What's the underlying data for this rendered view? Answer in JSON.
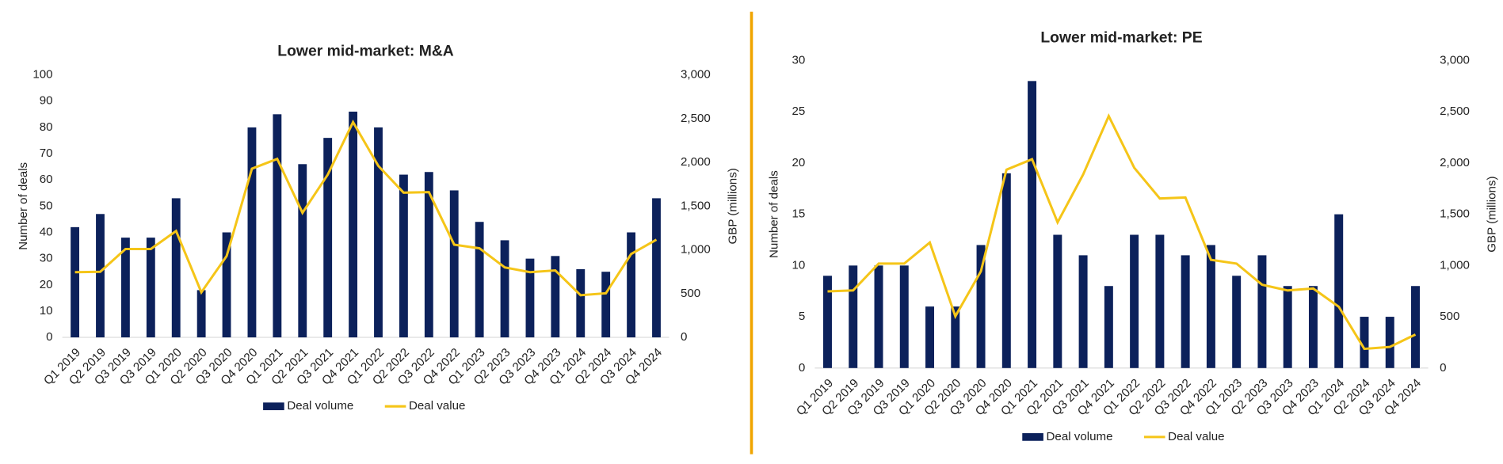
{
  "chart_data": [
    {
      "type": "combo",
      "title": "Lower mid-market: M&A",
      "ylabel": "Number of deals",
      "y2label": "GBP (millions)",
      "categories": [
        "Q1 2019",
        "Q2 2019",
        "Q3 2019",
        "Q3 2019",
        "Q1 2020",
        "Q2 2020",
        "Q3 2020",
        "Q4 2020",
        "Q1 2021",
        "Q2 2021",
        "Q3 2021",
        "Q4 2021",
        "Q1 2022",
        "Q2 2022",
        "Q3 2022",
        "Q4 2022",
        "Q1 2023",
        "Q2 2023",
        "Q3 2023",
        "Q4 2023",
        "Q1 2024",
        "Q2 2024",
        "Q3 2024",
        "Q4 2024"
      ],
      "series": [
        {
          "name": "Deal volume",
          "color": "#0c215b",
          "type": "bar",
          "values": [
            42,
            47,
            38,
            38,
            53,
            18,
            40,
            80,
            85,
            66,
            76,
            86,
            80,
            62,
            63,
            56,
            44,
            37,
            30,
            31,
            26,
            25,
            40,
            53
          ]
        },
        {
          "name": "Deal value",
          "color": "#f5c518",
          "type": "line",
          "axis": "y2",
          "values": [
            745,
            750,
            1010,
            1010,
            1216,
            515,
            930,
            1928,
            2040,
            1424,
            1860,
            2460,
            1960,
            1654,
            1660,
            1060,
            1018,
            800,
            745,
            765,
            482,
            504,
            953,
            1117
          ]
        }
      ],
      "ylim": [
        0,
        100
      ],
      "yticks": [
        0,
        10,
        20,
        30,
        40,
        50,
        60,
        70,
        80,
        90,
        100
      ],
      "y2lim": [
        0,
        3000
      ],
      "y2ticks": [
        0,
        500,
        {
          "value": 1000,
          "label": "1,000"
        },
        {
          "value": 1500,
          "label": "1,500"
        },
        {
          "value": 2000,
          "label": "2,000"
        },
        {
          "value": 2500,
          "label": "2,500"
        },
        {
          "value": 3000,
          "label": "3,000"
        }
      ],
      "grid": false,
      "legend": "bottom"
    },
    {
      "type": "combo",
      "title": "Lower mid-market: PE",
      "ylabel": "Number of deals",
      "y2label": "GBP (millions)",
      "categories": [
        "Q1 2019",
        "Q2 2019",
        "Q3 2019",
        "Q3 2019",
        "Q1 2020",
        "Q2 2020",
        "Q3 2020",
        "Q4 2020",
        "Q1 2021",
        "Q2 2021",
        "Q3 2021",
        "Q4 2021",
        "Q1 2022",
        "Q2 2022",
        "Q3 2022",
        "Q4 2022",
        "Q1 2023",
        "Q2 2023",
        "Q3 2023",
        "Q4 2023",
        "Q1 2024",
        "Q2 2024",
        "Q3 2024",
        "Q4 2024"
      ],
      "series": [
        {
          "name": "Deal volume",
          "color": "#0c215b",
          "type": "bar",
          "values": [
            9,
            10,
            10,
            10,
            6,
            6,
            12,
            19,
            28,
            13,
            11,
            8,
            13,
            13,
            11,
            12,
            9,
            11,
            8,
            8,
            15,
            5,
            5,
            8
          ]
        },
        {
          "name": "Deal value",
          "color": "#f5c518",
          "type": "line",
          "axis": "y2",
          "values": [
            748,
            757,
            1019,
            1019,
            1224,
            505,
            944,
            1935,
            2037,
            1421,
            1888,
            2458,
            1953,
            1654,
            1664,
            1056,
            1019,
            813,
            757,
            776,
            598,
            187,
            206,
            327
          ]
        }
      ],
      "ylim": [
        0,
        30
      ],
      "yticks": [
        0,
        5,
        10,
        15,
        20,
        25,
        30
      ],
      "y2lim": [
        0,
        3000
      ],
      "y2ticks": [
        0,
        500,
        {
          "value": 1000,
          "label": "1,000"
        },
        {
          "value": 1500,
          "label": "1,500"
        },
        {
          "value": 2000,
          "label": "2,000"
        },
        {
          "value": 2500,
          "label": "2,500"
        },
        {
          "value": 3000,
          "label": "3,000"
        }
      ],
      "grid": false,
      "legend": "bottom"
    }
  ]
}
